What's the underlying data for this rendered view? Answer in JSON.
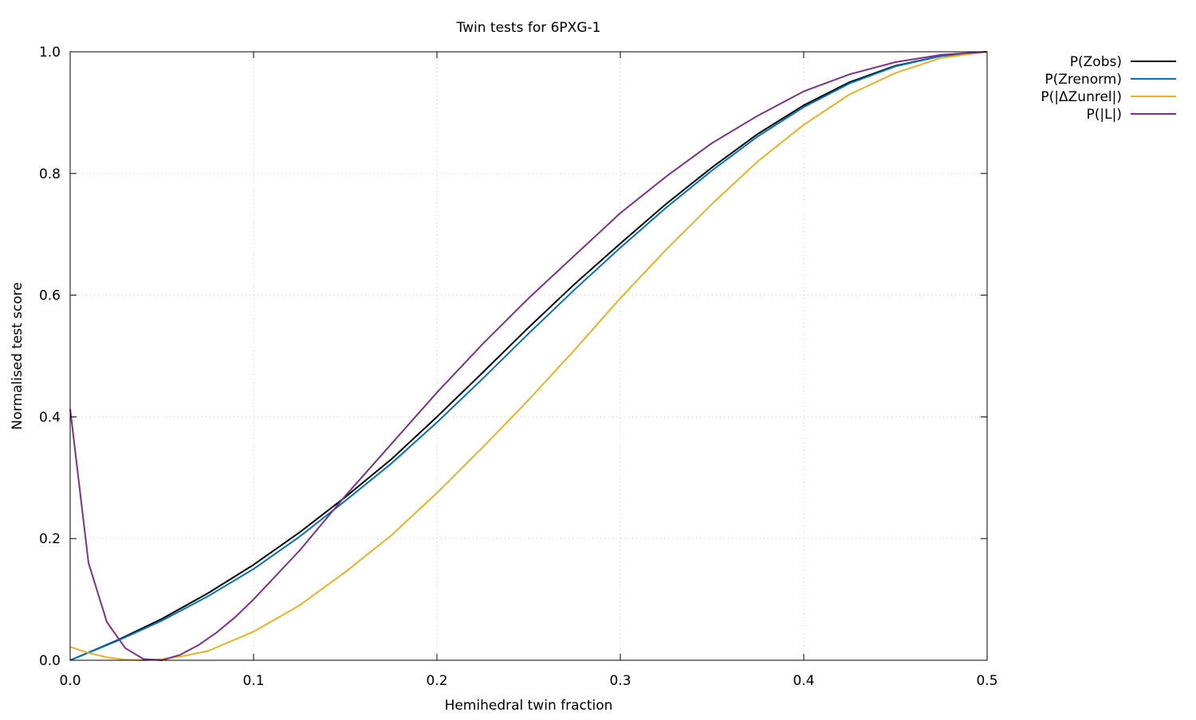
{
  "chart_data": {
    "type": "line",
    "title": "Twin tests for 6PXG-1",
    "xlabel": "Hemihedral twin fraction",
    "ylabel": "Normalised test score",
    "xlim": [
      0,
      0.5
    ],
    "ylim": [
      0,
      1
    ],
    "xticks": [
      "0.0",
      "0.1",
      "0.2",
      "0.3",
      "0.4",
      "0.5"
    ],
    "yticks": [
      "0.0",
      "0.2",
      "0.4",
      "0.6",
      "0.8",
      "1.0"
    ],
    "grid": true,
    "legend_position": "outside-top-right",
    "series": [
      {
        "name": "P(Zobs)",
        "color": "#000000",
        "x": [
          0,
          0.025,
          0.05,
          0.075,
          0.1,
          0.125,
          0.15,
          0.175,
          0.2,
          0.225,
          0.25,
          0.275,
          0.3,
          0.325,
          0.35,
          0.375,
          0.4,
          0.425,
          0.45,
          0.475,
          0.5
        ],
        "y": [
          0,
          0.032,
          0.068,
          0.11,
          0.157,
          0.21,
          0.268,
          0.33,
          0.4,
          0.473,
          0.547,
          0.618,
          0.685,
          0.75,
          0.81,
          0.865,
          0.912,
          0.95,
          0.977,
          0.993,
          1
        ]
      },
      {
        "name": "P(Zrenorm)",
        "color": "#0072bd",
        "x": [
          0,
          0.025,
          0.05,
          0.075,
          0.1,
          0.125,
          0.15,
          0.175,
          0.2,
          0.225,
          0.25,
          0.275,
          0.3,
          0.325,
          0.35,
          0.375,
          0.4,
          0.425,
          0.45,
          0.475,
          0.5
        ],
        "y": [
          0,
          0.031,
          0.065,
          0.105,
          0.15,
          0.203,
          0.262,
          0.323,
          0.391,
          0.463,
          0.537,
          0.609,
          0.678,
          0.744,
          0.805,
          0.861,
          0.909,
          0.948,
          0.976,
          0.993,
          1
        ]
      },
      {
        "name": "P(|ΔZunrel|)",
        "color": "#edb120",
        "x": [
          0,
          0.01,
          0.02,
          0.03,
          0.04,
          0.05,
          0.06,
          0.075,
          0.1,
          0.125,
          0.15,
          0.175,
          0.2,
          0.225,
          0.25,
          0.275,
          0.3,
          0.325,
          0.35,
          0.375,
          0.4,
          0.425,
          0.45,
          0.475,
          0.5
        ],
        "y": [
          0.022,
          0.012,
          0.005,
          0.001,
          0,
          0.002,
          0.006,
          0.015,
          0.047,
          0.09,
          0.145,
          0.205,
          0.275,
          0.35,
          0.428,
          0.51,
          0.595,
          0.675,
          0.75,
          0.82,
          0.88,
          0.93,
          0.965,
          0.99,
          1
        ]
      },
      {
        "name": "P(|L|)",
        "color": "#7e2f8e",
        "x": [
          0,
          0.01,
          0.02,
          0.03,
          0.04,
          0.05,
          0.06,
          0.07,
          0.08,
          0.09,
          0.1,
          0.125,
          0.15,
          0.175,
          0.2,
          0.225,
          0.25,
          0.275,
          0.3,
          0.325,
          0.35,
          0.375,
          0.4,
          0.425,
          0.45,
          0.475,
          0.5
        ],
        "y": [
          0.413,
          0.16,
          0.063,
          0.02,
          0.002,
          0,
          0.009,
          0.025,
          0.046,
          0.071,
          0.1,
          0.18,
          0.27,
          0.355,
          0.44,
          0.52,
          0.595,
          0.665,
          0.735,
          0.795,
          0.85,
          0.895,
          0.935,
          0.963,
          0.983,
          0.995,
          1
        ]
      }
    ]
  }
}
